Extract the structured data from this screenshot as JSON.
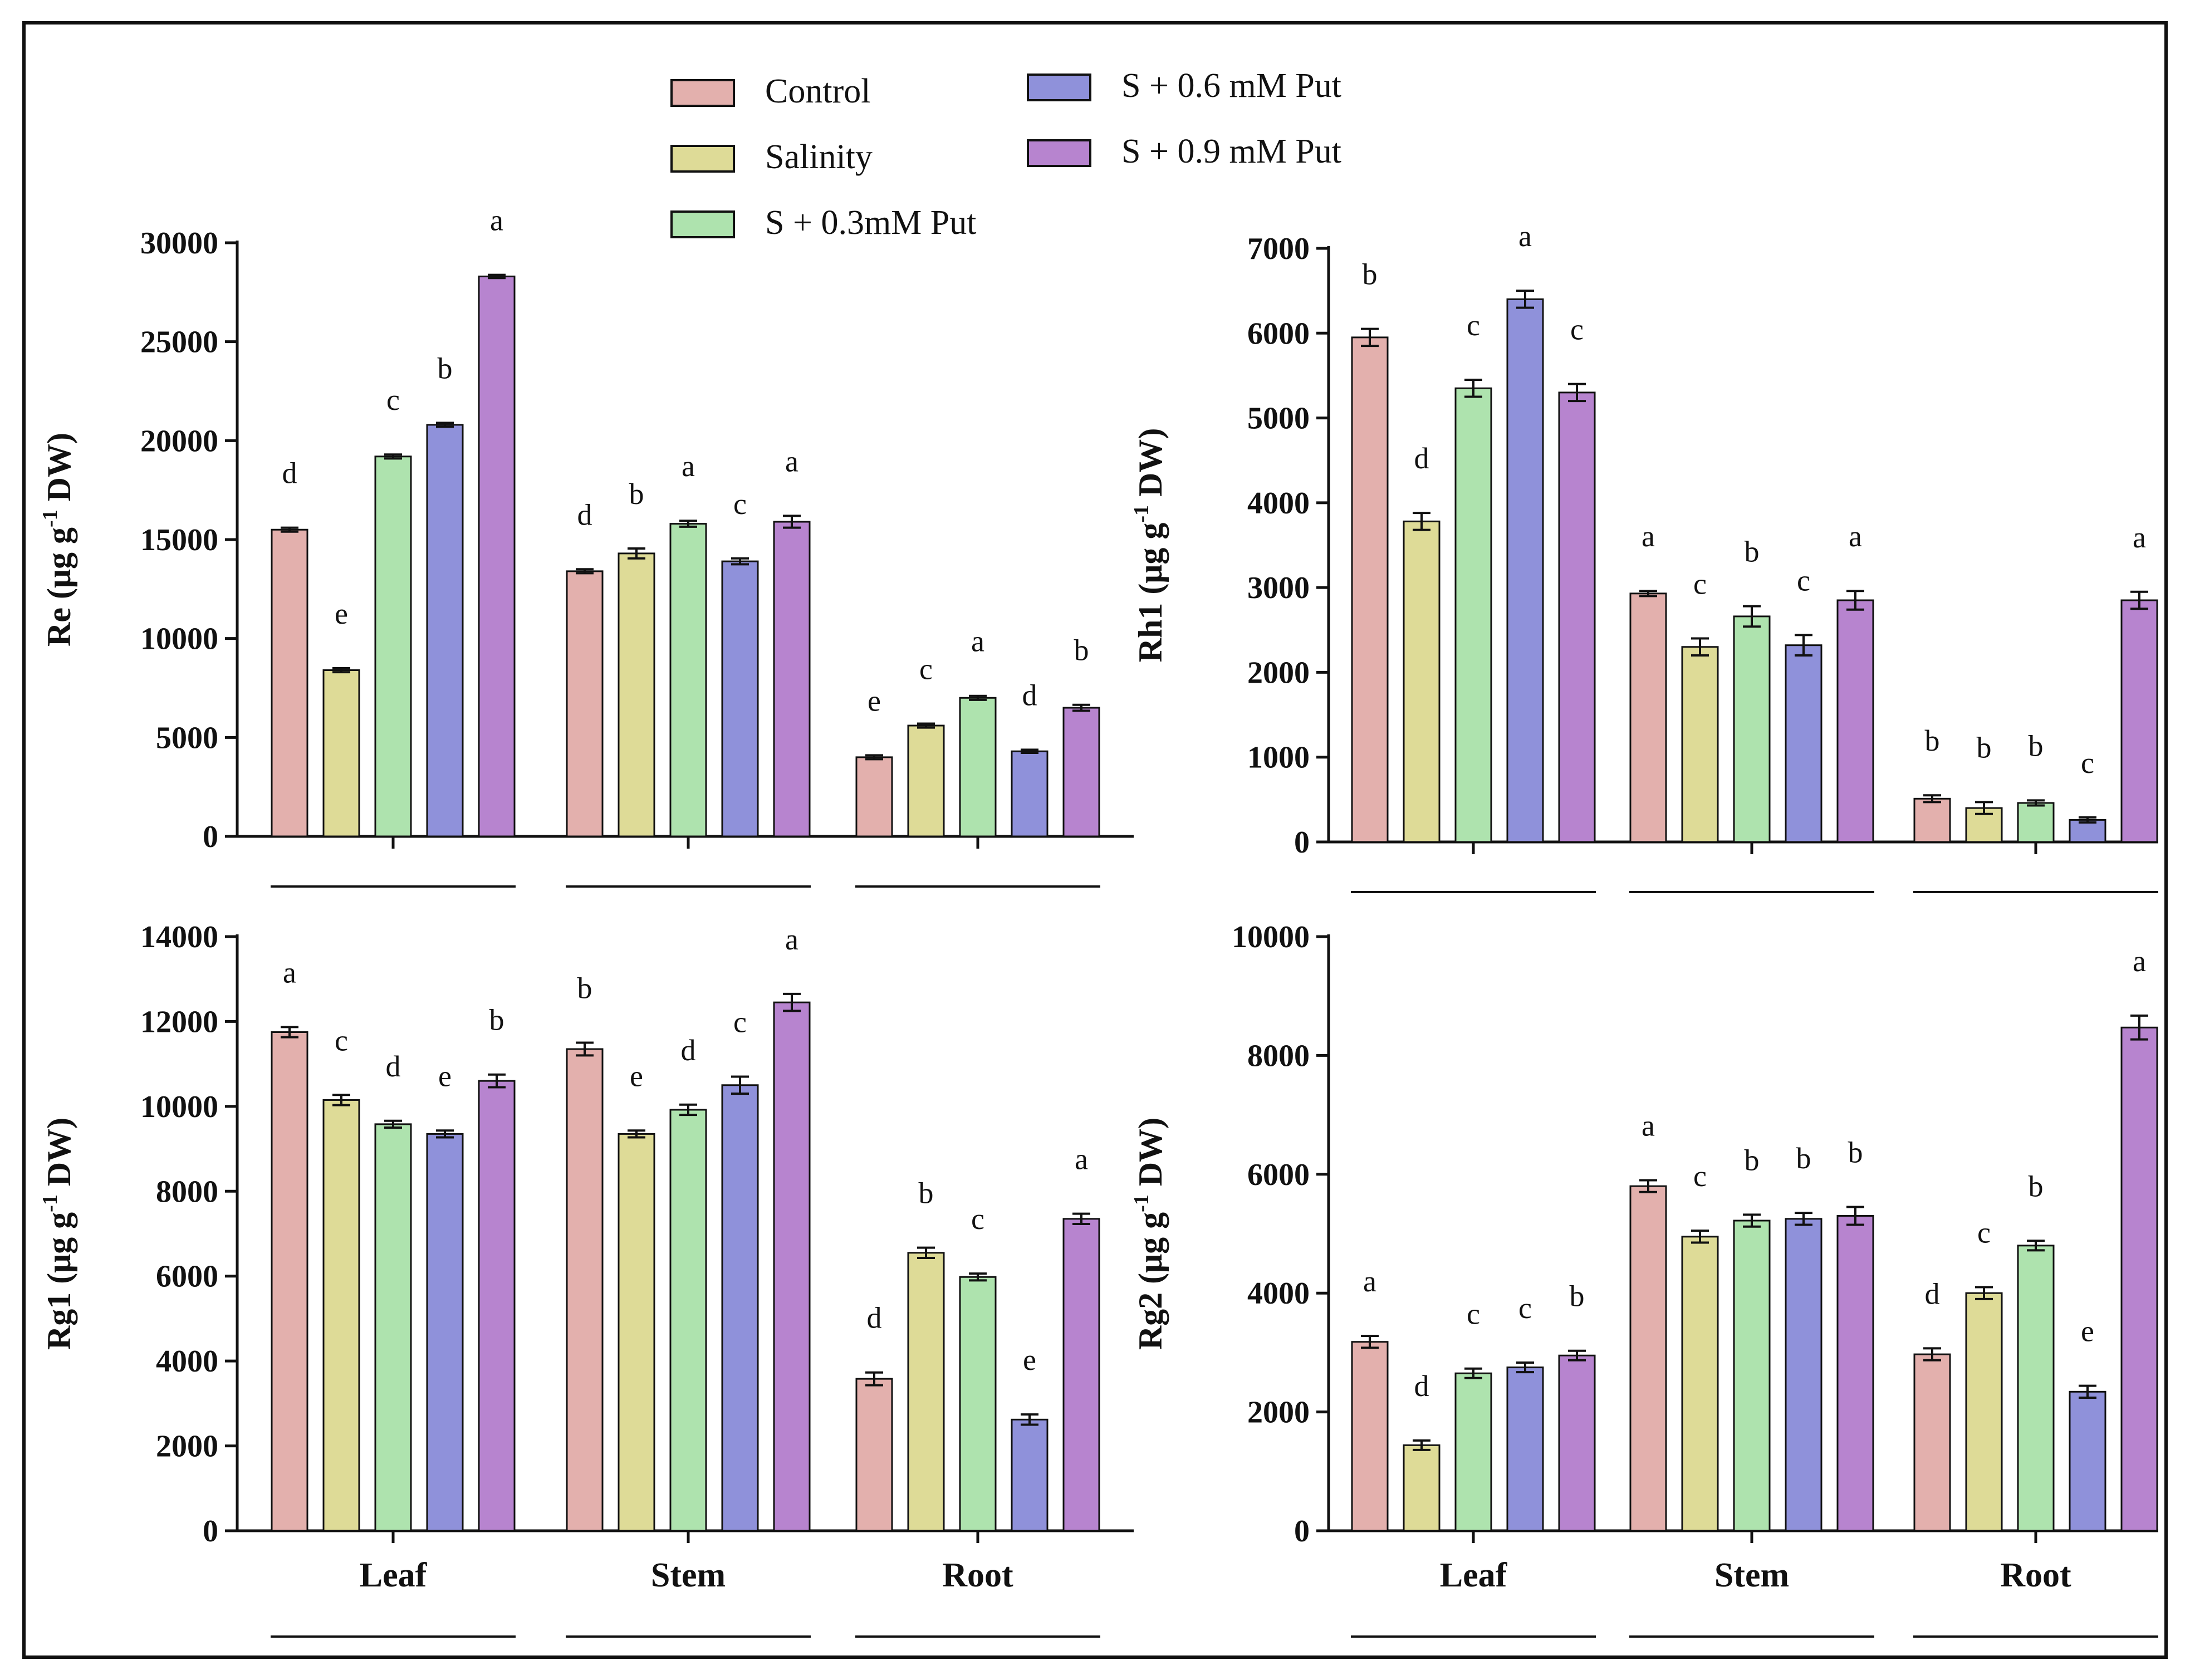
{
  "colors": {
    "Control": "#e3b0ad",
    "Salinity": "#dedb97",
    "S + 0.3mM Put": "#aee3ae",
    "S + 0.6 mM Put": "#8f91da",
    "S + 0.9 mM Put": "#b784cf"
  },
  "legend": {
    "items": [
      {
        "name": "Control",
        "label": "Control"
      },
      {
        "name": "Salinity",
        "label": "Salinity"
      },
      {
        "name": "S + 0.3mM Put",
        "label": "S + 0.3mM Put"
      },
      {
        "name": "S + 0.6 mM Put",
        "label": "S + 0.6 mM Put"
      },
      {
        "name": "S + 0.9 mM Put",
        "label": "S + 0.9 mM Put"
      }
    ]
  },
  "chart_data": [
    {
      "id": "re",
      "type": "bar",
      "ylabel": "Re (μg g-1 DW)",
      "ylabel_parts": [
        "Re (μg g",
        "-1",
        " DW)"
      ],
      "ylim": [
        0,
        30000
      ],
      "yticks": [
        "0",
        "5000",
        "10000",
        "15000",
        "20000",
        "25000",
        "30000"
      ],
      "categories": [
        "Leaf",
        "Stem",
        "Root"
      ],
      "show_category_labels": false,
      "series": [
        {
          "name": "Control",
          "values": [
            15500,
            13400,
            4000
          ],
          "errors": [
            100,
            100,
            100
          ],
          "letters": [
            "d",
            "d",
            "e"
          ]
        },
        {
          "name": "Salinity",
          "values": [
            8400,
            14300,
            5600
          ],
          "errors": [
            100,
            250,
            100
          ],
          "letters": [
            "e",
            "b",
            "c"
          ]
        },
        {
          "name": "S + 0.3mM Put",
          "values": [
            19200,
            15800,
            7000
          ],
          "errors": [
            100,
            150,
            100
          ],
          "letters": [
            "c",
            "a",
            "a"
          ]
        },
        {
          "name": "S + 0.6 mM Put",
          "values": [
            20800,
            13900,
            4300
          ],
          "errors": [
            100,
            150,
            80
          ],
          "letters": [
            "b",
            "c",
            "d"
          ]
        },
        {
          "name": "S + 0.9 mM Put",
          "values": [
            28300,
            15900,
            6500
          ],
          "errors": [
            80,
            300,
            150
          ],
          "letters": [
            "a",
            "a",
            "b"
          ]
        }
      ]
    },
    {
      "id": "rh1",
      "type": "bar",
      "ylabel": "Rh1 (μg g-1 DW)",
      "ylabel_parts": [
        "Rh1 (μg g",
        "-1",
        " DW)"
      ],
      "ylim": [
        0,
        7000
      ],
      "yticks": [
        "0",
        "1000",
        "2000",
        "3000",
        "4000",
        "5000",
        "6000",
        "7000"
      ],
      "categories": [
        "Leaf",
        "Stem",
        "Root"
      ],
      "show_category_labels": false,
      "series": [
        {
          "name": "Control",
          "values": [
            5950,
            2930,
            510
          ],
          "errors": [
            100,
            30,
            40
          ],
          "letters": [
            "b",
            "a",
            "b"
          ]
        },
        {
          "name": "Salinity",
          "values": [
            3780,
            2300,
            400
          ],
          "errors": [
            100,
            100,
            70
          ],
          "letters": [
            "d",
            "c",
            "b"
          ]
        },
        {
          "name": "S + 0.3mM Put",
          "values": [
            5350,
            2660,
            460
          ],
          "errors": [
            100,
            120,
            30
          ],
          "letters": [
            "c",
            "b",
            "b"
          ]
        },
        {
          "name": "S + 0.6 mM Put",
          "values": [
            6400,
            2320,
            260
          ],
          "errors": [
            100,
            120,
            30
          ],
          "letters": [
            "a",
            "c",
            "c"
          ]
        },
        {
          "name": "S + 0.9 mM Put",
          "values": [
            5300,
            2850,
            2850
          ],
          "errors": [
            100,
            110,
            100
          ],
          "letters": [
            "c",
            "a",
            "a"
          ]
        }
      ]
    },
    {
      "id": "rg1",
      "type": "bar",
      "ylabel": "Rg1 (μg g-1 DW)",
      "ylabel_parts": [
        "Rg1 (μg g",
        "-1",
        " DW)"
      ],
      "ylim": [
        0,
        14000
      ],
      "yticks": [
        "0",
        "2000",
        "4000",
        "6000",
        "8000",
        "10000",
        "12000",
        "14000"
      ],
      "categories": [
        "Leaf",
        "Stem",
        "Root"
      ],
      "show_category_labels": true,
      "series": [
        {
          "name": "Control",
          "values": [
            11750,
            11350,
            3580
          ],
          "errors": [
            120,
            150,
            150
          ],
          "letters": [
            "a",
            "b",
            "d"
          ]
        },
        {
          "name": "Salinity",
          "values": [
            10150,
            9350,
            6550
          ],
          "errors": [
            120,
            80,
            120
          ],
          "letters": [
            "c",
            "e",
            "b"
          ]
        },
        {
          "name": "S + 0.3mM Put",
          "values": [
            9580,
            9920,
            5980
          ],
          "errors": [
            80,
            120,
            80
          ],
          "letters": [
            "d",
            "d",
            "c"
          ]
        },
        {
          "name": "S + 0.6 mM Put",
          "values": [
            9350,
            10500,
            2620
          ],
          "errors": [
            80,
            200,
            120
          ],
          "letters": [
            "e",
            "c",
            "e"
          ]
        },
        {
          "name": "S + 0.9 mM Put",
          "values": [
            10600,
            12450,
            7350
          ],
          "errors": [
            150,
            200,
            120
          ],
          "letters": [
            "b",
            "a",
            "a"
          ]
        }
      ]
    },
    {
      "id": "rg2",
      "type": "bar",
      "ylabel": "Rg2 (μg g-1 DW)",
      "ylabel_parts": [
        "Rg2 (μg g",
        "-1",
        " DW)"
      ],
      "ylim": [
        0,
        10000
      ],
      "yticks": [
        "0",
        "2000",
        "4000",
        "6000",
        "8000",
        "10000"
      ],
      "categories": [
        "Leaf",
        "Stem",
        "Root"
      ],
      "show_category_labels": true,
      "series": [
        {
          "name": "Control",
          "values": [
            3180,
            5800,
            2970
          ],
          "errors": [
            100,
            100,
            100
          ],
          "letters": [
            "a",
            "a",
            "d"
          ]
        },
        {
          "name": "Salinity",
          "values": [
            1440,
            4950,
            4000
          ],
          "errors": [
            80,
            100,
            100
          ],
          "letters": [
            "d",
            "c",
            "c"
          ]
        },
        {
          "name": "S + 0.3mM Put",
          "values": [
            2650,
            5220,
            4800
          ],
          "errors": [
            80,
            100,
            80
          ],
          "letters": [
            "c",
            "b",
            "b"
          ]
        },
        {
          "name": "S + 0.6 mM Put",
          "values": [
            2750,
            5250,
            2340
          ],
          "errors": [
            80,
            100,
            100
          ],
          "letters": [
            "c",
            "b",
            "e"
          ]
        },
        {
          "name": "S + 0.9 mM Put",
          "values": [
            2950,
            5300,
            8470
          ],
          "errors": [
            80,
            150,
            200
          ],
          "letters": [
            "b",
            "b",
            "a"
          ]
        }
      ]
    }
  ]
}
